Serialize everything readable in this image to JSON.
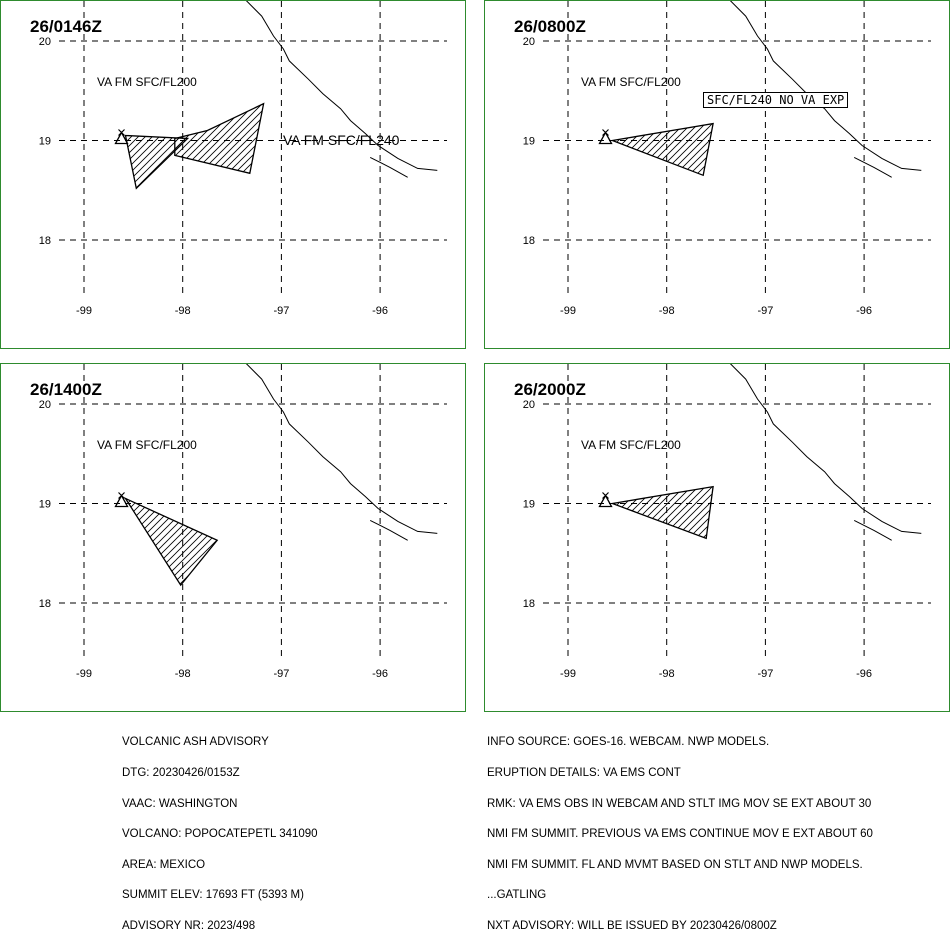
{
  "panels": [
    {
      "time": "26/0146Z",
      "labels": [
        "VA FM SFC/FL200",
        "VA FM SFC/FL240"
      ],
      "polygons": [
        [
          [
            -98.58,
            19.05
          ],
          [
            -97.95,
            19.02
          ],
          [
            -98.47,
            18.52
          ]
        ],
        [
          [
            -98.08,
            19.02
          ],
          [
            -97.75,
            19.1
          ],
          [
            -97.18,
            19.37
          ],
          [
            -97.32,
            18.67
          ],
          [
            -98.08,
            18.85
          ]
        ]
      ]
    },
    {
      "time": "26/0800Z",
      "labels": [
        "VA FM SFC/FL200"
      ],
      "boxed_label": "SFC/FL240 NO VA EXP",
      "polygons": [
        [
          [
            -98.55,
            19.0
          ],
          [
            -97.53,
            19.17
          ],
          [
            -97.63,
            18.65
          ]
        ]
      ]
    },
    {
      "time": "26/1400Z",
      "labels": [
        "VA FM SFC/FL200"
      ],
      "polygons": [
        [
          [
            -98.58,
            19.05
          ],
          [
            -97.65,
            18.63
          ],
          [
            -98.02,
            18.18
          ]
        ]
      ]
    },
    {
      "time": "26/2000Z",
      "labels": [
        "VA FM SFC/FL200"
      ],
      "polygons": [
        [
          [
            -98.55,
            19.0
          ],
          [
            -97.53,
            19.17
          ],
          [
            -97.6,
            18.65
          ]
        ]
      ]
    }
  ],
  "map": {
    "lon_ticks": [
      "-99",
      "-98",
      "-97",
      "-96"
    ],
    "lat_ticks": [
      "20",
      "19",
      "18"
    ],
    "volcano": {
      "lon": -98.62,
      "lat": 19.02,
      "symbol": "triangle"
    },
    "colors": {
      "frame": "#2e8b2e",
      "ash_outline": "#000000",
      "hatch": "#000000",
      "grid": "#000000"
    }
  },
  "advisory_left": [
    "VOLCANIC ASH ADVISORY",
    "DTG: 20230426/0153Z",
    "VAAC: WASHINGTON",
    "VOLCANO: POPOCATEPETL 341090",
    "AREA: MEXICO",
    "SUMMIT ELEV: 17693 FT (5393 M)",
    "ADVISORY NR: 2023/498"
  ],
  "advisory_right": [
    "INFO SOURCE: GOES-16. WEBCAM. NWP MODELS.",
    "ERUPTION DETAILS: VA EMS CONT",
    "RMK: VA EMS OBS IN WEBCAM AND STLT IMG MOV SE EXT ABOUT 30",
    "NMI FM SUMMIT. PREVIOUS VA EMS CONTINUE MOV E EXT ABOUT 60",
    "NMI FM SUMMIT. FL AND MVMT BASED ON STLT AND NWP MODELS.",
    "...GATLING",
    "NXT ADVISORY: WILL BE ISSUED BY 20230426/0800Z"
  ]
}
